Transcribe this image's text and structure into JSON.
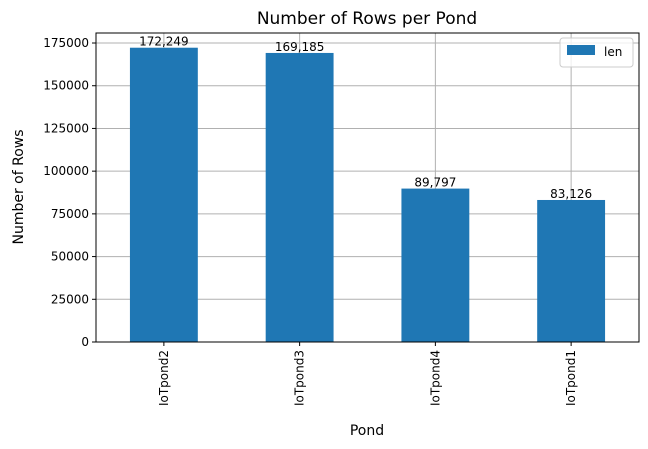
{
  "chart_data": {
    "type": "bar",
    "title": "Number of Rows per Pond",
    "xlabel": "Pond",
    "ylabel": "Number of Rows",
    "categories": [
      "IoTpond2",
      "IoTpond3",
      "IoTpond4",
      "IoTpond1"
    ],
    "series": [
      {
        "name": "len",
        "values": [
          172249,
          169185,
          89797,
          83126
        ],
        "labels": [
          "172,249",
          "169,185",
          "89,797",
          "83,126"
        ],
        "color": "#1f77b4"
      }
    ],
    "ylim": [
      0,
      180862
    ],
    "yticks": [
      0,
      25000,
      50000,
      75000,
      100000,
      125000,
      150000,
      175000
    ],
    "ytick_labels": [
      "0",
      "25000",
      "50000",
      "75000",
      "100000",
      "125000",
      "150000",
      "175000"
    ],
    "grid": true,
    "legend_position": "top-right",
    "x_tick_rotation": "vertical"
  }
}
